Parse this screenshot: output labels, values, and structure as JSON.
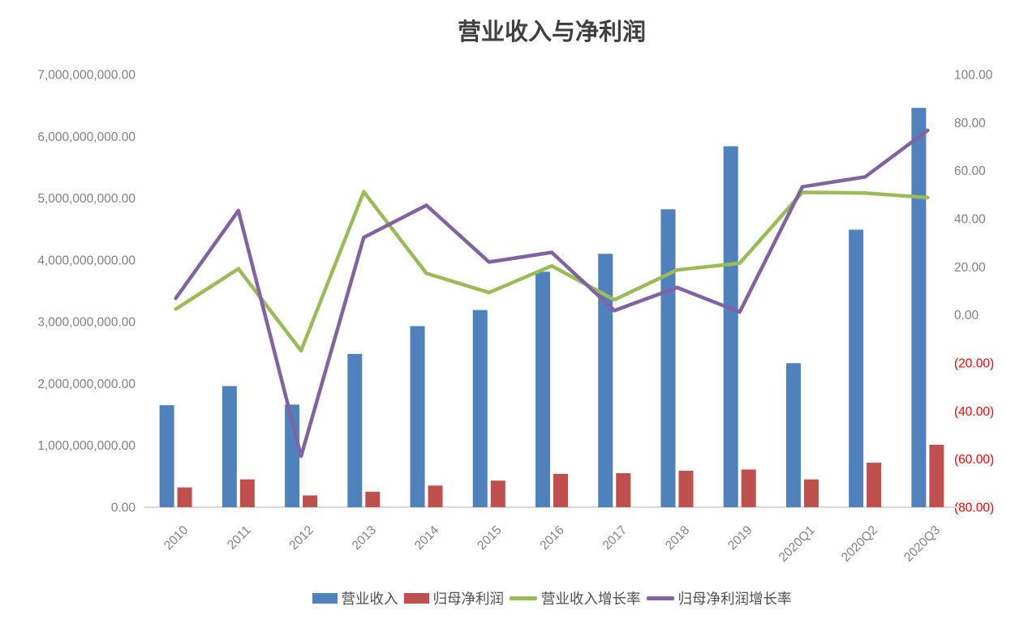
{
  "title": "营业收入与净利润",
  "colors": {
    "revenue_bar": "#4F81BD",
    "profit_bar": "#C0504D",
    "revenue_growth_line": "#9BBB59",
    "profit_growth_line": "#8064A2",
    "axis_label": "#808080",
    "negative_label": "#FF0000",
    "axis_line": "#D9D9D9",
    "title": "#404040",
    "background": "#FFFFFF"
  },
  "chart_data": {
    "type": "combo",
    "title": "营业收入与净利润",
    "categories": [
      "2010",
      "2011",
      "2012",
      "2013",
      "2014",
      "2015",
      "2016",
      "2017",
      "2018",
      "2019",
      "2020Q1",
      "2020Q2",
      "2020Q3"
    ],
    "series": [
      {
        "name": "营业收入",
        "type": "bar",
        "axis": "left",
        "color": "#4F81BD",
        "values": [
          1650000000,
          1960000000,
          1660000000,
          2480000000,
          2930000000,
          3190000000,
          3810000000,
          4100000000,
          4820000000,
          5840000000,
          2330000000,
          4490000000,
          6460000000
        ]
      },
      {
        "name": "归母净利润",
        "type": "bar",
        "axis": "left",
        "color": "#C0504D",
        "values": [
          320000000,
          450000000,
          190000000,
          250000000,
          350000000,
          430000000,
          540000000,
          550000000,
          590000000,
          610000000,
          450000000,
          720000000,
          1010000000
        ]
      },
      {
        "name": "营业收入增长率",
        "type": "line",
        "axis": "right",
        "color": "#9BBB59",
        "values": [
          2.4,
          19.2,
          -14.9,
          51.2,
          17.3,
          9.3,
          20.4,
          6.3,
          18.7,
          21.5,
          51.0,
          50.7,
          48.8
        ]
      },
      {
        "name": "归母净利润增长率",
        "type": "line",
        "axis": "right",
        "color": "#8064A2",
        "values": [
          6.9,
          43.4,
          -58.8,
          32.2,
          45.6,
          22.0,
          26.0,
          1.8,
          11.4,
          1.2,
          53.3,
          57.4,
          76.8
        ]
      }
    ],
    "left_axis": {
      "min": 0,
      "max": 7000000000,
      "step": 1000000000,
      "tick_labels": [
        "0.00",
        "1,000,000,000.00",
        "2,000,000,000.00",
        "3,000,000,000.00",
        "4,000,000,000.00",
        "5,000,000,000.00",
        "6,000,000,000.00",
        "7,000,000,000.00"
      ]
    },
    "right_axis": {
      "min": -80,
      "max": 100,
      "step": 20,
      "tick_labels": [
        "(80.00)",
        "(60.00)",
        "(40.00)",
        "(20.00)",
        "0.00",
        "20.00",
        "40.00",
        "60.00",
        "80.00",
        "100.00"
      ]
    },
    "grid": false,
    "legend_position": "bottom",
    "x_label_rotation": -45
  }
}
